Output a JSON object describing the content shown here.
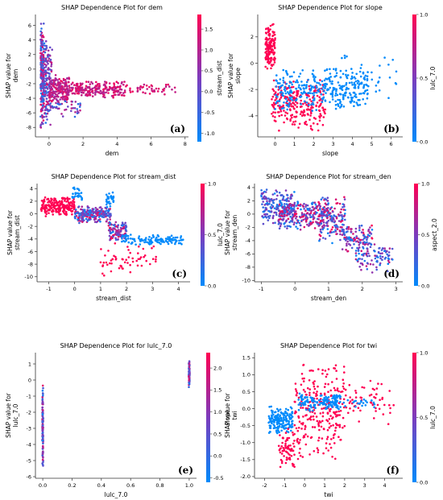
{
  "chart_data": [
    {
      "type": "scatter",
      "panel_tag": "(a)",
      "title": "SHAP Dependence Plot for dem",
      "xlabel": "dem",
      "ylabel": "SHAP value for\ndem",
      "colorbar_label": "stream_dist",
      "xlim": [
        -0.8,
        8.2
      ],
      "ylim": [
        -9.3,
        7.5
      ],
      "xticks": [
        0,
        2,
        4,
        6,
        8
      ],
      "yticks": [
        -8,
        -6,
        -4,
        -2,
        0,
        2,
        4,
        6
      ],
      "clim": [
        -1.2,
        1.85
      ],
      "cticks": [
        -1.0,
        -0.5,
        0.0,
        0.5,
        1.0,
        1.5
      ],
      "clusters": [
        {
          "xr": [
            -0.5,
            -0.3
          ],
          "yr": [
            -8.5,
            6.8
          ],
          "c": [
            -1.1,
            1.6
          ],
          "n": 220
        },
        {
          "xr": [
            -0.3,
            0.2
          ],
          "yr": [
            -8.0,
            5.0
          ],
          "c": [
            -1.0,
            1.5
          ],
          "n": 160
        },
        {
          "xr": [
            0.0,
            1.2
          ],
          "yr": [
            -5.0,
            -0.5
          ],
          "c": [
            0.6,
            1.7
          ],
          "n": 170
        },
        {
          "xr": [
            1.0,
            4.5
          ],
          "yr": [
            -4.0,
            -1.5
          ],
          "c": [
            0.8,
            1.7
          ],
          "n": 220
        },
        {
          "xr": [
            4.5,
            7.5
          ],
          "yr": [
            -3.6,
            -2.0
          ],
          "c": [
            1.0,
            1.7
          ],
          "n": 45
        },
        {
          "xr": [
            0.2,
            2.0
          ],
          "yr": [
            -6.8,
            -3.8
          ],
          "c": [
            -0.8,
            1.2
          ],
          "n": 40
        }
      ]
    },
    {
      "type": "scatter",
      "panel_tag": "(b)",
      "title": "SHAP Dependence Plot for slope",
      "xlabel": "slope",
      "ylabel": "SHAP value for\nslope",
      "colorbar_label": "lulc_7.0",
      "xlim": [
        -0.9,
        6.6
      ],
      "ylim": [
        -5.6,
        3.7
      ],
      "xticks": [
        0,
        1,
        2,
        3,
        4,
        5,
        6
      ],
      "yticks": [
        -4,
        -2,
        0,
        2
      ],
      "clim": [
        0,
        1
      ],
      "cticks": [
        0.0,
        0.5,
        1.0
      ],
      "clusters": [
        {
          "xr": [
            -0.5,
            0.0
          ],
          "yr": [
            -0.8,
            3.2
          ],
          "c": [
            1,
            1
          ],
          "n": 150
        },
        {
          "xr": [
            -0.2,
            2.6
          ],
          "yr": [
            -5.3,
            -1.0
          ],
          "c": [
            1,
            1
          ],
          "n": 260
        },
        {
          "xr": [
            0.0,
            4.8
          ],
          "yr": [
            -3.8,
            -0.3
          ],
          "c": [
            0,
            0
          ],
          "n": 320
        },
        {
          "xr": [
            2.5,
            6.3
          ],
          "yr": [
            -3.0,
            0.8
          ],
          "c": [
            0,
            0
          ],
          "n": 50
        }
      ]
    },
    {
      "type": "scatter",
      "panel_tag": "(c)",
      "title": "SHAP Dependence Plot for stream_dist",
      "xlabel": "stream_dist",
      "ylabel": "SHAP value for\nstream_dist",
      "colorbar_label": "lulc_7.0",
      "xlim": [
        -1.45,
        4.45
      ],
      "ylim": [
        -10.8,
        4.8
      ],
      "xticks": [
        -1,
        0,
        1,
        2,
        3,
        4
      ],
      "yticks": [
        -10,
        -8,
        -6,
        -4,
        -2,
        0,
        2,
        4
      ],
      "clim": [
        0,
        1
      ],
      "cticks": [
        0.0,
        0.5,
        1.0
      ],
      "clusters": [
        {
          "xr": [
            -1.3,
            0.0
          ],
          "yr": [
            -0.5,
            2.8
          ],
          "c": [
            1,
            1
          ],
          "n": 200
        },
        {
          "xr": [
            0.0,
            1.4
          ],
          "yr": [
            -1.5,
            1.3
          ],
          "c": [
            0,
            1
          ],
          "n": 230
        },
        {
          "xr": [
            -0.1,
            0.3
          ],
          "yr": [
            2.0,
            4.3
          ],
          "c": [
            0,
            0
          ],
          "n": 30
        },
        {
          "xr": [
            1.2,
            1.5
          ],
          "yr": [
            1.0,
            3.5
          ],
          "c": [
            0,
            0
          ],
          "n": 30
        },
        {
          "xr": [
            1.3,
            2.0
          ],
          "yr": [
            -4.5,
            -1.0
          ],
          "c": [
            0,
            1
          ],
          "n": 110
        },
        {
          "xr": [
            1.8,
            4.2
          ],
          "yr": [
            -5.0,
            -3.2
          ],
          "c": [
            0,
            0
          ],
          "n": 120
        },
        {
          "xr": [
            1.0,
            3.2
          ],
          "yr": [
            -10.3,
            -4.5
          ],
          "c": [
            1,
            1
          ],
          "n": 60
        }
      ]
    },
    {
      "type": "scatter",
      "panel_tag": "(d)",
      "title": "SHAP Dependence Plot for stream_den",
      "xlabel": "stream_den",
      "ylabel": "SHAP value for\nstream_den",
      "colorbar_label": "aspect_2.0",
      "xlim": [
        -1.2,
        3.2
      ],
      "ylim": [
        -10.2,
        4.6
      ],
      "xticks": [
        -1,
        0,
        1,
        2,
        3
      ],
      "yticks": [
        -10,
        -8,
        -6,
        -4,
        -2,
        0,
        2,
        4
      ],
      "clim": [
        0,
        1
      ],
      "cticks": [
        0.0,
        0.5,
        1.0
      ],
      "clusters": [
        {
          "xr": [
            -1.0,
            0.0
          ],
          "yr": [
            -2.0,
            4.0
          ],
          "c": [
            0,
            0.6
          ],
          "n": 200
        },
        {
          "xr": [
            -0.5,
            1.0
          ],
          "yr": [
            -2.5,
            2.5
          ],
          "c": [
            0,
            1
          ],
          "n": 240
        },
        {
          "xr": [
            0.7,
            1.5
          ],
          "yr": [
            -4.5,
            3.0
          ],
          "c": [
            0,
            1
          ],
          "n": 160
        },
        {
          "xr": [
            1.4,
            2.3
          ],
          "yr": [
            -6.0,
            -1.5
          ],
          "c": [
            0,
            1
          ],
          "n": 120
        },
        {
          "xr": [
            1.8,
            2.9
          ],
          "yr": [
            -9.0,
            -4.0
          ],
          "c": [
            0,
            0.8
          ],
          "n": 90
        }
      ]
    },
    {
      "type": "scatter",
      "panel_tag": "(e)",
      "title": "SHAP Dependence Plot for lulc_7.0",
      "xlabel": "lulc_7.0",
      "ylabel": "SHAP value for\nlulc_7.0",
      "colorbar_label": "slope",
      "xlim": [
        -0.05,
        1.05
      ],
      "ylim": [
        -6.1,
        1.7
      ],
      "xticks": [
        0.0,
        0.2,
        0.4,
        0.6,
        0.8,
        1.0
      ],
      "yticks": [
        -6,
        -5,
        -4,
        -3,
        -2,
        -1,
        0,
        1
      ],
      "clim": [
        -0.6,
        2.35
      ],
      "cticks": [
        -0.5,
        0.0,
        0.5,
        1.0,
        1.5,
        2.0
      ],
      "clusters": [
        {
          "xr": [
            -0.003,
            0.003
          ],
          "yr": [
            -5.8,
            -0.2
          ],
          "c": [
            -0.5,
            2.1
          ],
          "n": 120
        },
        {
          "xr": [
            0.997,
            1.003
          ],
          "yr": [
            -0.5,
            1.4
          ],
          "c": [
            -0.5,
            2.1
          ],
          "n": 80
        }
      ]
    },
    {
      "type": "scatter",
      "panel_tag": "(f)",
      "title": "SHAP Dependence Plot for twi",
      "xlabel": "twi",
      "ylabel": "SHAP value for\ntwi",
      "colorbar_label": "lulc_7.0",
      "xlim": [
        -2.5,
        4.9
      ],
      "ylim": [
        -2.05,
        1.65
      ],
      "xticks": [
        -2,
        -1,
        0,
        1,
        2,
        3,
        4
      ],
      "yticks": [
        -2.0,
        -1.5,
        -1.0,
        -0.5,
        0.0,
        0.5,
        1.0,
        1.5
      ],
      "clim": [
        0,
        1
      ],
      "cticks": [
        0.0,
        0.5,
        1.0
      ],
      "clusters": [
        {
          "xr": [
            -1.8,
            -0.6
          ],
          "yr": [
            -0.8,
            0.1
          ],
          "c": [
            0,
            0
          ],
          "n": 180
        },
        {
          "xr": [
            -1.3,
            -0.5
          ],
          "yr": [
            -1.9,
            -0.5
          ],
          "c": [
            1,
            1
          ],
          "n": 70
        },
        {
          "xr": [
            -0.5,
            2.0
          ],
          "yr": [
            -1.6,
            1.5
          ],
          "c": [
            1,
            1
          ],
          "n": 260
        },
        {
          "xr": [
            -0.3,
            1.8
          ],
          "yr": [
            -0.1,
            0.5
          ],
          "c": [
            0,
            0
          ],
          "n": 140
        },
        {
          "xr": [
            2.0,
            4.5
          ],
          "yr": [
            -0.5,
            0.9
          ],
          "c": [
            1,
            1
          ],
          "n": 60
        },
        {
          "xr": [
            1.5,
            3.5
          ],
          "yr": [
            0.0,
            0.3
          ],
          "c": [
            0,
            0
          ],
          "n": 25
        }
      ]
    }
  ]
}
